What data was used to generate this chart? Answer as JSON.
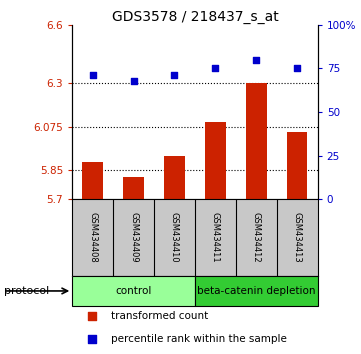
{
  "title": "GDS3578 / 218437_s_at",
  "samples": [
    "GSM434408",
    "GSM434409",
    "GSM434410",
    "GSM434411",
    "GSM434412",
    "GSM434413"
  ],
  "bar_values": [
    5.895,
    5.815,
    5.925,
    6.1,
    6.3,
    6.05
  ],
  "dot_values": [
    71,
    68,
    71,
    75,
    80,
    75
  ],
  "ylim_left": [
    5.7,
    6.6
  ],
  "ylim_right": [
    0,
    100
  ],
  "yticks_left": [
    5.7,
    5.85,
    6.075,
    6.3,
    6.6
  ],
  "ytick_labels_left": [
    "5.7",
    "5.85",
    "6.075",
    "6.3",
    "6.6"
  ],
  "yticks_right": [
    0,
    25,
    50,
    75,
    100
  ],
  "ytick_labels_right": [
    "0",
    "25",
    "50",
    "75",
    "100%"
  ],
  "hgrid_values": [
    5.85,
    6.075,
    6.3
  ],
  "bar_color": "#CC2200",
  "dot_color": "#0000CC",
  "bar_bottom": 5.7,
  "groups": [
    {
      "label": "control",
      "n_samples": 3,
      "color": "#99FF99"
    },
    {
      "label": "beta-catenin depletion",
      "n_samples": 3,
      "color": "#33CC33"
    }
  ],
  "protocol_label": "protocol",
  "legend_items": [
    {
      "color": "#CC2200",
      "label": "transformed count"
    },
    {
      "color": "#0000CC",
      "label": "percentile rank within the sample"
    }
  ],
  "sample_box_color": "#C8C8C8",
  "background_color": "#FFFFFF"
}
